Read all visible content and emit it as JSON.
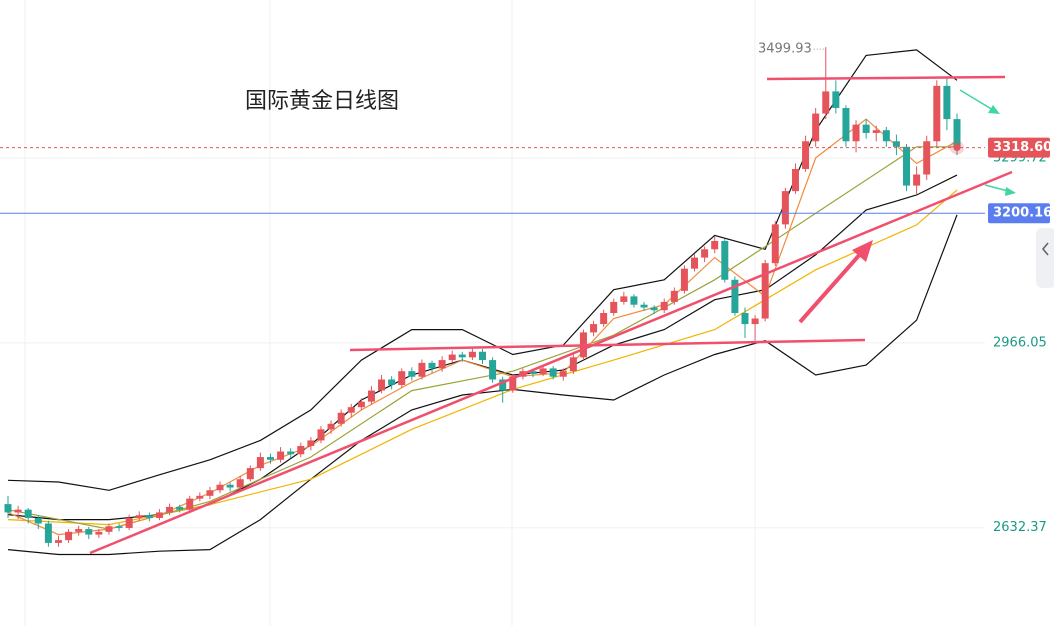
{
  "chart_data": {
    "type": "candlestick",
    "title": "国际黄金日线图",
    "up_color": "#e5545a",
    "down_color": "#26a69a",
    "ylim": [
      2455,
      3585
    ],
    "yticks": [
      2632.37,
      2966.05,
      3299.72
    ],
    "grid": true,
    "ohlc": [
      [
        2675,
        2690,
        2650,
        2660
      ],
      [
        2660,
        2672,
        2648,
        2665
      ],
      [
        2665,
        2668,
        2640,
        2650
      ],
      [
        2650,
        2655,
        2630,
        2640
      ],
      [
        2640,
        2645,
        2598,
        2605
      ],
      [
        2605,
        2618,
        2598,
        2610
      ],
      [
        2610,
        2630,
        2605,
        2625
      ],
      [
        2625,
        2636,
        2618,
        2630
      ],
      [
        2630,
        2634,
        2612,
        2620
      ],
      [
        2620,
        2630,
        2614,
        2625
      ],
      [
        2625,
        2640,
        2620,
        2635
      ],
      [
        2635,
        2640,
        2626,
        2632
      ],
      [
        2632,
        2656,
        2628,
        2650
      ],
      [
        2650,
        2662,
        2645,
        2655
      ],
      [
        2655,
        2660,
        2644,
        2650
      ],
      [
        2650,
        2666,
        2646,
        2660
      ],
      [
        2660,
        2676,
        2655,
        2670
      ],
      [
        2670,
        2674,
        2660,
        2665
      ],
      [
        2665,
        2690,
        2662,
        2685
      ],
      [
        2685,
        2696,
        2680,
        2690
      ],
      [
        2690,
        2706,
        2684,
        2700
      ],
      [
        2700,
        2716,
        2695,
        2710
      ],
      [
        2710,
        2714,
        2698,
        2705
      ],
      [
        2705,
        2726,
        2700,
        2720
      ],
      [
        2720,
        2745,
        2716,
        2740
      ],
      [
        2740,
        2768,
        2735,
        2760
      ],
      [
        2760,
        2766,
        2748,
        2755
      ],
      [
        2755,
        2778,
        2750,
        2770
      ],
      [
        2770,
        2776,
        2758,
        2765
      ],
      [
        2765,
        2786,
        2760,
        2780
      ],
      [
        2780,
        2796,
        2772,
        2790
      ],
      [
        2790,
        2816,
        2785,
        2810
      ],
      [
        2810,
        2826,
        2802,
        2820
      ],
      [
        2820,
        2846,
        2815,
        2840
      ],
      [
        2840,
        2856,
        2832,
        2850
      ],
      [
        2850,
        2866,
        2844,
        2860
      ],
      [
        2860,
        2888,
        2855,
        2880
      ],
      [
        2880,
        2908,
        2875,
        2900
      ],
      [
        2900,
        2906,
        2882,
        2890
      ],
      [
        2890,
        2920,
        2885,
        2915
      ],
      [
        2915,
        2922,
        2898,
        2905
      ],
      [
        2905,
        2936,
        2900,
        2930
      ],
      [
        2930,
        2934,
        2912,
        2920
      ],
      [
        2920,
        2942,
        2914,
        2935
      ],
      [
        2935,
        2952,
        2930,
        2945
      ],
      [
        2945,
        2950,
        2932,
        2940
      ],
      [
        2940,
        2956,
        2935,
        2950
      ],
      [
        2950,
        2955,
        2928,
        2935
      ],
      [
        2935,
        2940,
        2894,
        2900
      ],
      [
        2900,
        2905,
        2858,
        2880
      ],
      [
        2880,
        2910,
        2876,
        2905
      ],
      [
        2905,
        2920,
        2900,
        2915
      ],
      [
        2915,
        2918,
        2904,
        2910
      ],
      [
        2910,
        2926,
        2906,
        2920
      ],
      [
        2920,
        2924,
        2900,
        2905
      ],
      [
        2905,
        2920,
        2898,
        2915
      ],
      [
        2915,
        2946,
        2910,
        2940
      ],
      [
        2940,
        2990,
        2935,
        2985
      ],
      [
        2985,
        3006,
        2978,
        3000
      ],
      [
        3000,
        3026,
        2995,
        3020
      ],
      [
        3020,
        3046,
        3015,
        3040
      ],
      [
        3040,
        3058,
        3035,
        3050
      ],
      [
        3050,
        3054,
        3030,
        3035
      ],
      [
        3035,
        3040,
        3024,
        3030
      ],
      [
        3030,
        3034,
        3018,
        3025
      ],
      [
        3025,
        3046,
        3020,
        3040
      ],
      [
        3040,
        3066,
        3035,
        3060
      ],
      [
        3060,
        3106,
        3055,
        3100
      ],
      [
        3100,
        3126,
        3095,
        3120
      ],
      [
        3120,
        3140,
        3112,
        3135
      ],
      [
        3135,
        3158,
        3128,
        3150
      ],
      [
        3150,
        3154,
        3075,
        3080
      ],
      [
        3080,
        3086,
        3015,
        3020
      ],
      [
        3020,
        3030,
        2975,
        3000
      ],
      [
        3000,
        3016,
        2970,
        3010
      ],
      [
        3010,
        3116,
        3005,
        3110
      ],
      [
        3110,
        3186,
        3105,
        3180
      ],
      [
        3180,
        3246,
        3172,
        3240
      ],
      [
        3240,
        3290,
        3235,
        3280
      ],
      [
        3280,
        3340,
        3275,
        3330
      ],
      [
        3330,
        3390,
        3320,
        3380
      ],
      [
        3380,
        3499.93,
        3370,
        3420
      ],
      [
        3420,
        3440,
        3380,
        3390
      ],
      [
        3390,
        3395,
        3320,
        3330
      ],
      [
        3330,
        3368,
        3310,
        3360
      ],
      [
        3360,
        3370,
        3335,
        3345
      ],
      [
        3345,
        3358,
        3330,
        3350
      ],
      [
        3350,
        3356,
        3320,
        3330
      ],
      [
        3330,
        3342,
        3305,
        3320
      ],
      [
        3320,
        3325,
        3240,
        3250
      ],
      [
        3250,
        3285,
        3235,
        3270
      ],
      [
        3270,
        3340,
        3260,
        3330
      ],
      [
        3330,
        3440,
        3320,
        3430
      ],
      [
        3430,
        3445,
        3350,
        3370
      ],
      [
        3370,
        3380,
        3305,
        3318.6
      ]
    ],
    "high_label": "3499.93",
    "series": [
      {
        "color": "#111111",
        "x": [
          0,
          5,
          10,
          15,
          20,
          25,
          30,
          35,
          40,
          45,
          50,
          55,
          60,
          65,
          70,
          75,
          80,
          85,
          90,
          94
        ],
        "values": [
          2718,
          2715,
          2700,
          2728,
          2755,
          2790,
          2845,
          2935,
          2990,
          2990,
          2945,
          2962,
          3062,
          3080,
          3160,
          3135,
          3350,
          3485,
          3495,
          3440
        ]
      },
      {
        "color": "#111111",
        "x": [
          0,
          5,
          10,
          15,
          20,
          25,
          30,
          35,
          40,
          45,
          50,
          55,
          60,
          65,
          70,
          75,
          80,
          85,
          90,
          94
        ],
        "values": [
          2656,
          2647,
          2647,
          2656,
          2674,
          2720,
          2782,
          2863,
          2908,
          2935,
          2908,
          2917,
          2962,
          2990,
          3044,
          3062,
          3125,
          3206,
          3233,
          3269
        ]
      },
      {
        "color": "#111111",
        "x": [
          0,
          5,
          10,
          15,
          20,
          25,
          30,
          35,
          40,
          45,
          50,
          55,
          60,
          65,
          70,
          75,
          80,
          85,
          90,
          94
        ],
        "values": [
          2593,
          2584,
          2584,
          2590,
          2593,
          2647,
          2720,
          2790,
          2845,
          2872,
          2882,
          2872,
          2863,
          2908,
          2945,
          2970,
          2908,
          2926,
          3007,
          3197
        ]
      },
      {
        "color": "#f0b400",
        "x": [
          0,
          10,
          20,
          30,
          40,
          50,
          60,
          70,
          80,
          90,
          94
        ],
        "values": [
          2647,
          2638,
          2674,
          2720,
          2810,
          2882,
          2935,
          2990,
          3098,
          3179,
          3242
        ]
      },
      {
        "color": "#9aa43a",
        "x": [
          0,
          10,
          20,
          30,
          40,
          50,
          60,
          70,
          80,
          90,
          94
        ],
        "values": [
          2665,
          2630,
          2680,
          2760,
          2880,
          2915,
          2980,
          3080,
          3200,
          3320,
          3320
        ]
      },
      {
        "color": "#f08c3c",
        "x": [
          0,
          5,
          10,
          15,
          20,
          25,
          30,
          35,
          40,
          45,
          50,
          55,
          60,
          65,
          70,
          75,
          80,
          85,
          90,
          94
        ],
        "values": [
          2660,
          2620,
          2630,
          2655,
          2695,
          2745,
          2780,
          2845,
          2895,
          2935,
          2905,
          2912,
          3010,
          3035,
          3120,
          3050,
          3300,
          3370,
          3290,
          3330
        ]
      }
    ],
    "price_lines": [
      {
        "value": 3318.6,
        "label": "3318.60",
        "color": "#e5545a"
      },
      {
        "value": 3200.16,
        "label": "3200.16",
        "color": "#5a7ef0"
      }
    ]
  }
}
